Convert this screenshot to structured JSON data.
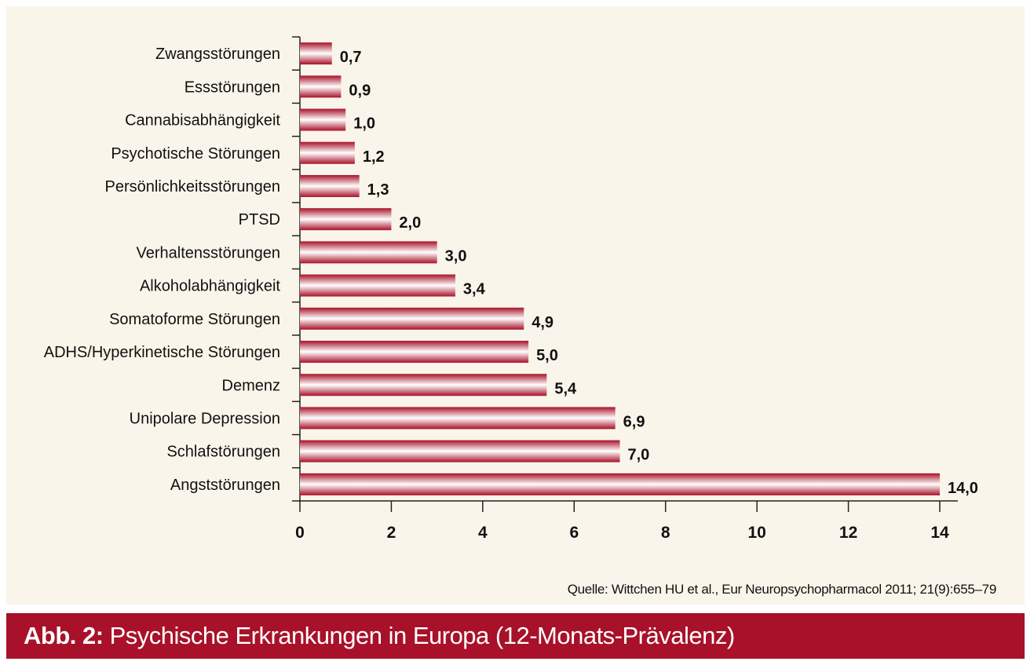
{
  "chart_data": {
    "type": "bar",
    "orientation": "horizontal",
    "categories": [
      "Zwangsstörungen",
      "Essstörungen",
      "Cannabisabhängigkeit",
      "Psychotische Störungen",
      "Persönlichkeitsstörungen",
      "PTSD",
      "Verhaltensstörungen",
      "Alkoholabhängigkeit",
      "Somatoforme Störungen",
      "ADHS/Hyperkinetische Störungen",
      "Demenz",
      "Unipolare Depression",
      "Schlafstörungen",
      "Angststörungen"
    ],
    "values": [
      0.7,
      0.9,
      1.0,
      1.2,
      1.3,
      2.0,
      3.0,
      3.4,
      4.9,
      5.0,
      5.4,
      6.9,
      7.0,
      14.0
    ],
    "data_labels": [
      "0,7",
      "0,9",
      "1,0",
      "1,2",
      "1,3",
      "2,0",
      "3,0",
      "3,4",
      "4,9",
      "5,0",
      "5,4",
      "6,9",
      "7,0",
      "14,0"
    ],
    "xlim": [
      0,
      14
    ],
    "x_ticks": [
      "0",
      "2",
      "4",
      "6",
      "8",
      "10",
      "12",
      "14"
    ],
    "grid": false,
    "bar_color": "#a81129",
    "background": "#f9f5ea"
  },
  "source": "Quelle: Wittchen HU et al., Eur Neuropsychopharmacol 2011; 21(9):655–79",
  "caption": {
    "prefix": "Abb. 2:",
    "text": "Psychische Erkrankungen in Europa (12-Monats-Prävalenz)"
  }
}
